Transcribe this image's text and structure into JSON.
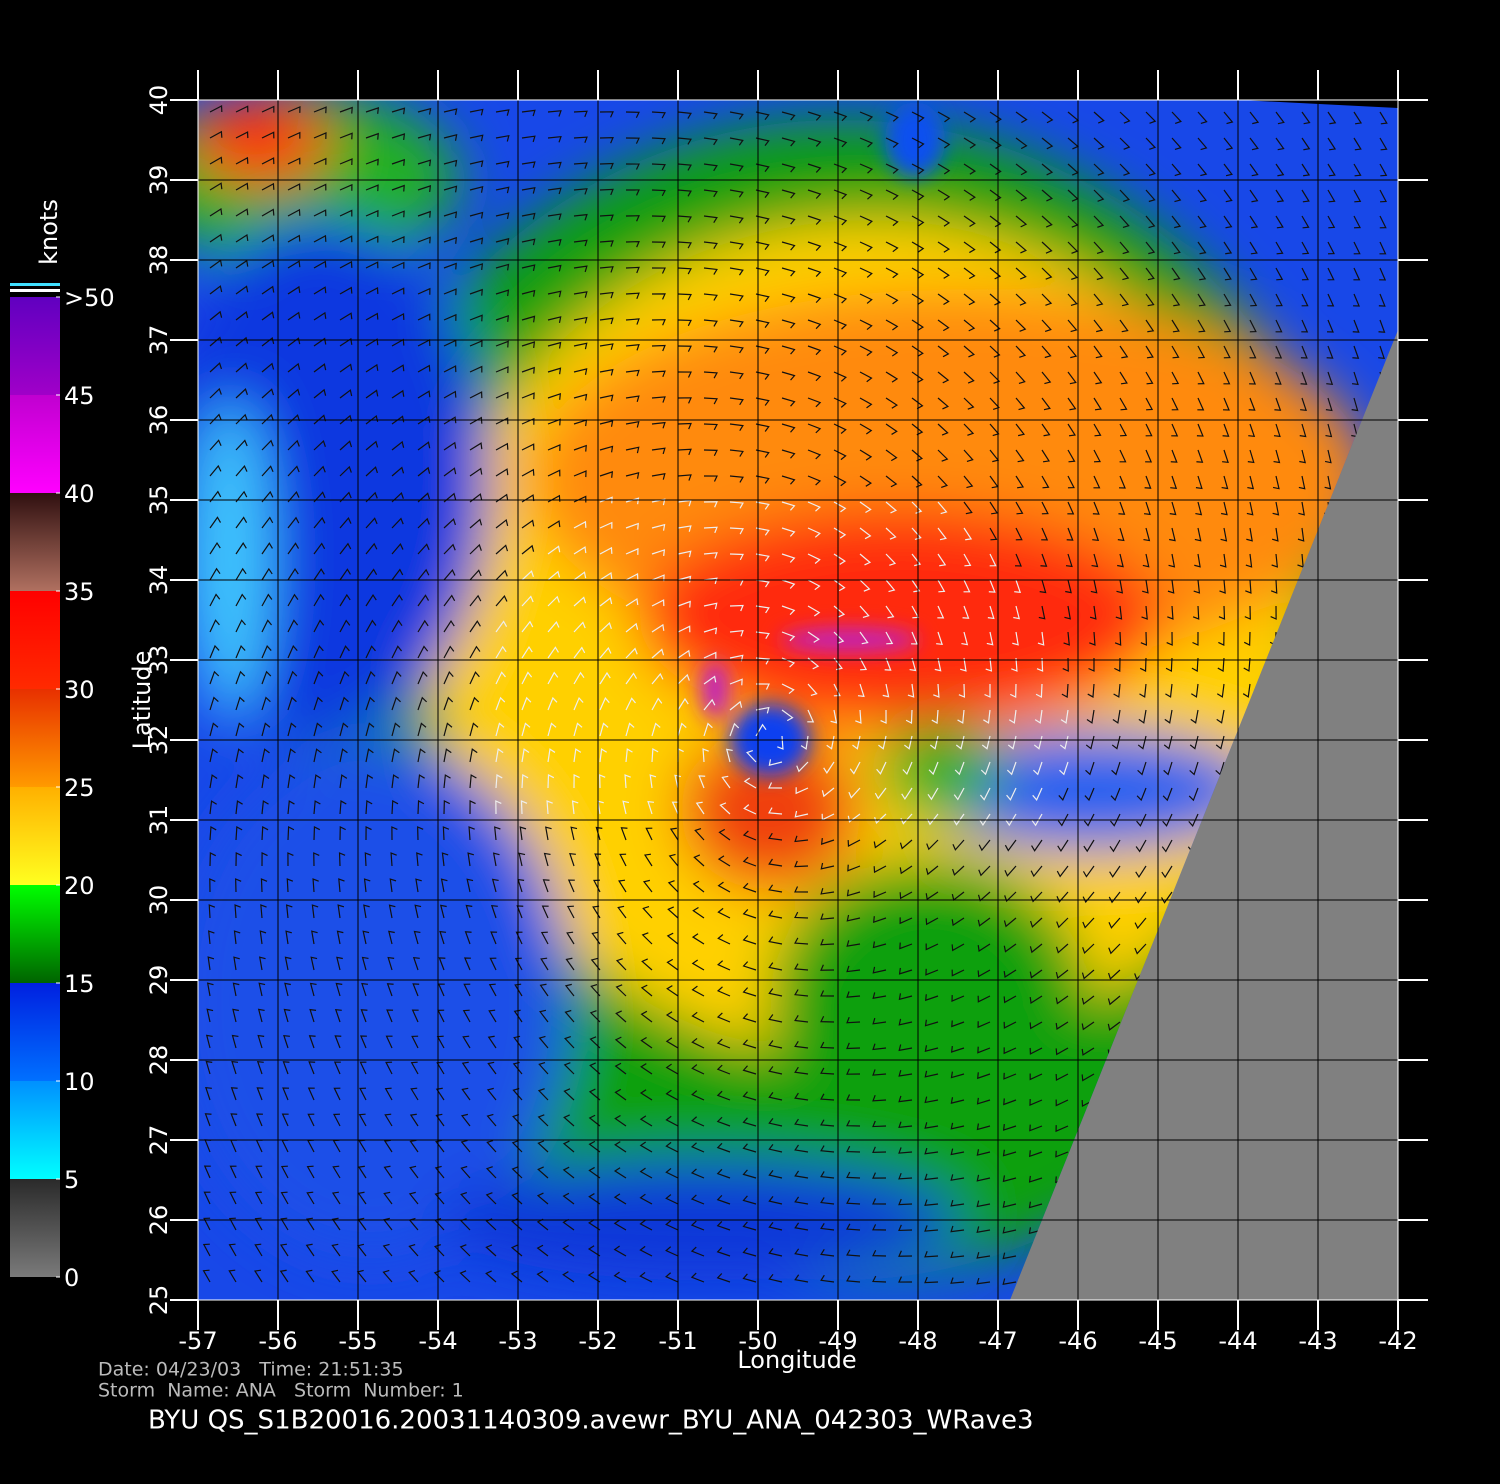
{
  "map": {
    "x_label": "Longitude",
    "y_label": "Latitude",
    "xlim": [
      -57,
      -42
    ],
    "ylim": [
      25,
      40
    ],
    "xticks": [
      -57,
      -56,
      -55,
      -54,
      -53,
      -52,
      -51,
      -50,
      -49,
      -48,
      -47,
      -46,
      -45,
      -44,
      -43,
      -42
    ],
    "yticks": [
      25,
      26,
      27,
      28,
      29,
      30,
      31,
      32,
      33,
      34,
      35,
      36,
      37,
      38,
      39,
      40
    ]
  },
  "colorbar": {
    "title": "knots",
    "ticks": [
      0,
      5,
      10,
      15,
      20,
      25,
      30,
      35,
      40,
      45,
      {
        "value": 50,
        "label": ">50"
      }
    ],
    "colors": [
      [
        "#7a7a7a",
        "#2a2a2a"
      ],
      [
        "#00ffff",
        "#0090ff"
      ],
      [
        "#0070ff",
        "#0020e0"
      ],
      [
        "#006400",
        "#00ff00"
      ],
      [
        "#ffff20",
        "#ffb000"
      ],
      [
        "#ff9a00",
        "#e83000"
      ],
      [
        "#ff2a00",
        "#ff0000"
      ],
      [
        "#b07060",
        "#301010"
      ],
      [
        "#ff00ff",
        "#c000d0"
      ],
      [
        "#a000c8",
        "#6000c0"
      ]
    ]
  },
  "footer": {
    "date_line": "Date: 04/23/03   Time: 21:51:35",
    "storm_line": "Storm  Name: ANA   Storm  Number: 1",
    "title": "BYU  QS_S1B20016.20031140309.avewr_BYU_ANA_042303_WRave3"
  }
}
